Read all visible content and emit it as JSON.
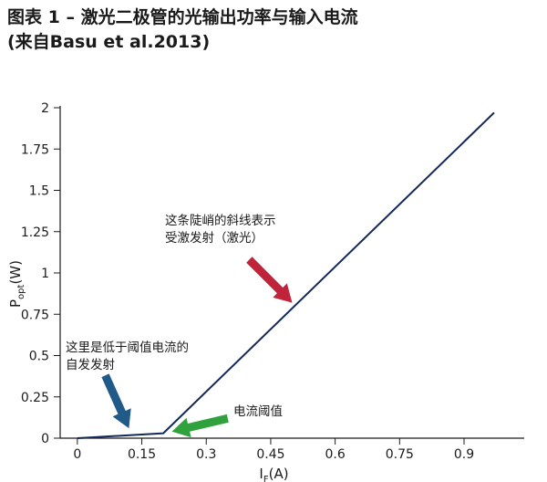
{
  "figure": {
    "title_line1": "图表 1 – 激光二极管的光输出功率与输入电流",
    "title_line2": "(来自Basu et al.2013)"
  },
  "chart_data": {
    "type": "line",
    "x": [
      0,
      0.2,
      0.97
    ],
    "series": [
      {
        "values": [
          0.0,
          0.03,
          1.97
        ]
      }
    ],
    "xlim": [
      -0.04,
      1.04
    ],
    "ylim": [
      0,
      2
    ],
    "xticks": [
      0,
      0.15,
      0.3,
      0.45,
      0.6,
      0.75,
      0.9
    ],
    "xtick_labels": [
      "0",
      "0.15",
      "0.3",
      "0.45",
      "0.6",
      "0.75",
      "0.9"
    ],
    "yticks": [
      0,
      0.25,
      0.5,
      0.75,
      1,
      1.25,
      1.5,
      1.75,
      2
    ],
    "ytick_labels": [
      "0",
      "0.25",
      "0.5",
      "0.75",
      "1",
      "1.25",
      "1.5",
      "1.75",
      "2"
    ],
    "xlabel": {
      "main": "I",
      "sub": "F",
      "unit": "(A)"
    },
    "ylabel": {
      "main": "P",
      "sub": "opt",
      "unit": "(W)"
    },
    "grid": false,
    "line_color": "#13285a",
    "annotations": [
      {
        "lines": [
          "这条陡峭的斜线表示",
          "受激发射（激光）"
        ],
        "arrow_color": "#c0243a",
        "arrow_from": [
          0.4,
          1.08
        ],
        "arrow_to": [
          0.5,
          0.82
        ]
      },
      {
        "lines": [
          "这里是低于阈值电流的",
          "自发发射"
        ],
        "arrow_color": "#205a88",
        "arrow_from": [
          0.065,
          0.38
        ],
        "arrow_to": [
          0.12,
          0.06
        ]
      },
      {
        "lines": [
          "电流阈值"
        ],
        "arrow_color": "#2fa23d",
        "arrow_from": [
          0.35,
          0.12
        ],
        "arrow_to": [
          0.22,
          0.04
        ]
      }
    ]
  }
}
